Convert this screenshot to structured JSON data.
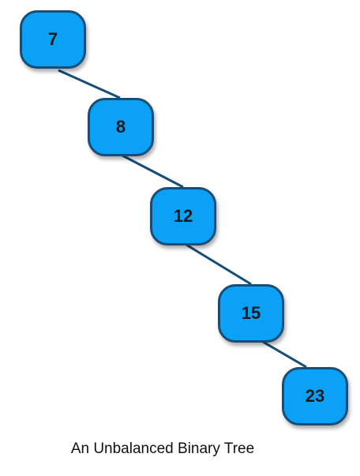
{
  "colors": {
    "node_fill": "#0aa1f6",
    "node_border": "#174d77",
    "edge": "#174d77",
    "text": "#1a1a1a"
  },
  "tree": {
    "nodes": [
      {
        "label": "7"
      },
      {
        "label": "8"
      },
      {
        "label": "12"
      },
      {
        "label": "15"
      },
      {
        "label": "23"
      }
    ]
  },
  "caption": "An Unbalanced Binary Tree"
}
